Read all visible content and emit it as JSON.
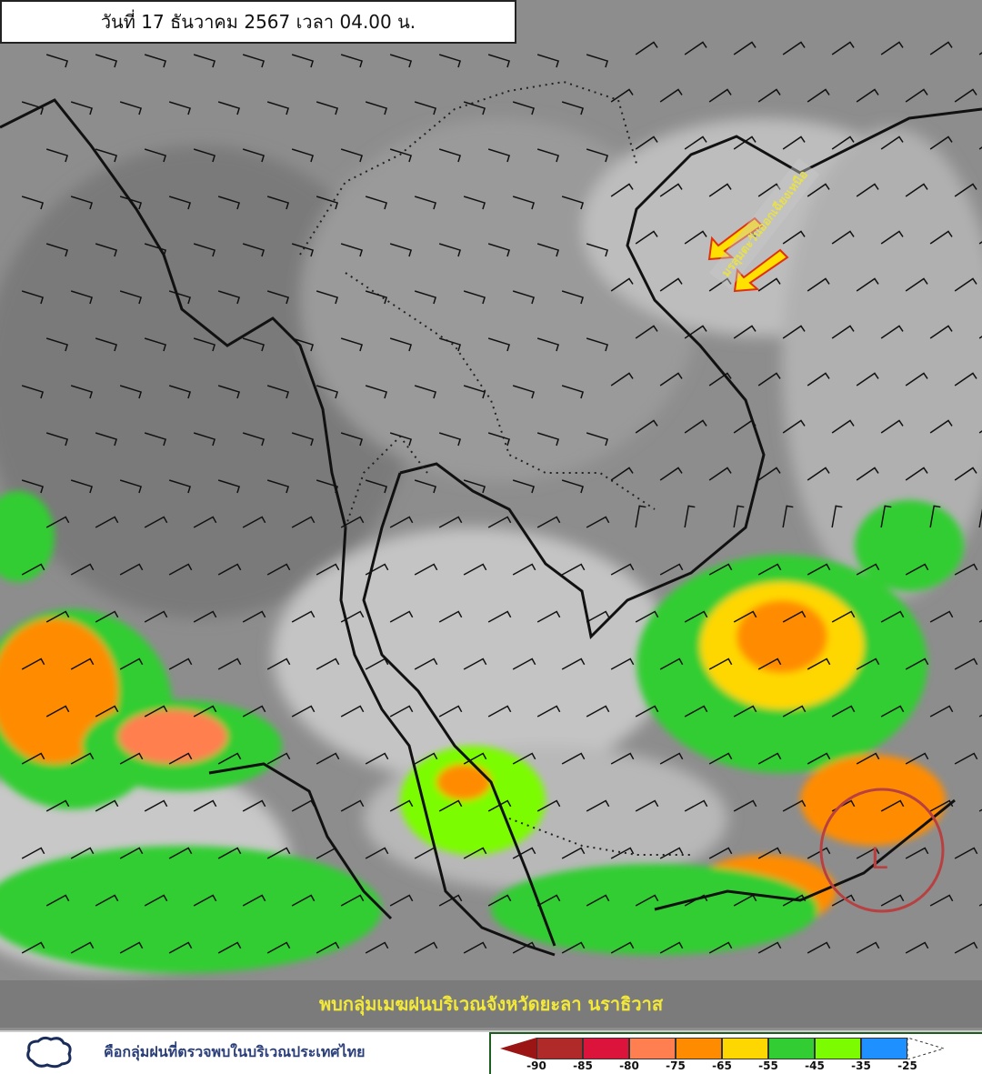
{
  "header": {
    "title": "วันที่ 17 ธันวาคม 2567 เวลา 04.00 น."
  },
  "map": {
    "monsoon_label": "มรสุมตะวันออกเฉียงเหนือ",
    "banner": "พบกลุ่มเมฆฝนบริเวณจังหวัดยะลา นราธิวาส",
    "low_pressure_label": "L",
    "arrow_color": "#ffe000",
    "low_color": "#b84040"
  },
  "legend": {
    "rain_cluster_text": "คือกลุ่มฝนที่ตรวจพบในบริเวณประเทศไทย",
    "scale_colors": [
      "#9b1515",
      "#b02a2a",
      "#dc143c",
      "#ff7f50",
      "#ff8c00",
      "#ffd700",
      "#32cd32",
      "#7cfc00",
      "#1e90ff",
      "#ffffff"
    ],
    "scale_labels": [
      "-90",
      "-85",
      "-80",
      "-75",
      "-65",
      "-55",
      "-45",
      "-35",
      "-25"
    ]
  }
}
